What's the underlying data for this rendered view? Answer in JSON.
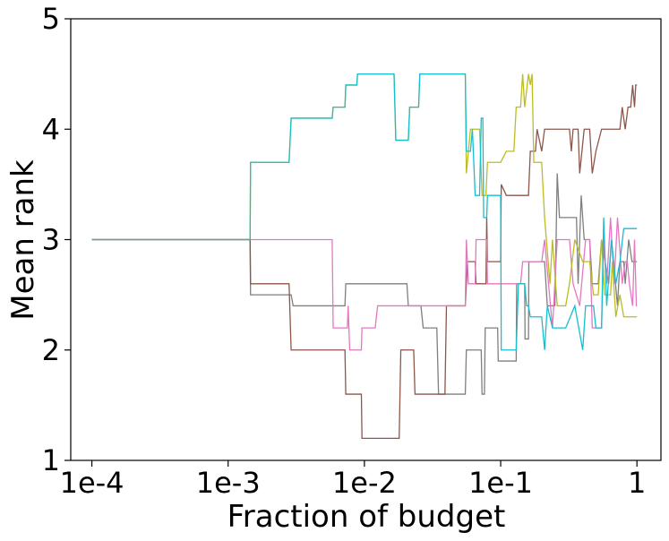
{
  "chart_data": {
    "type": "line",
    "title": "",
    "xlabel": "Fraction of budget",
    "ylabel": "Mean rank",
    "xscale": "log",
    "xlim": [
      7e-05,
      1.5
    ],
    "ylim": [
      1,
      5
    ],
    "x_ticks": [
      {
        "value": 0.0001,
        "label": "1e-4"
      },
      {
        "value": 0.001,
        "label": "1e-3"
      },
      {
        "value": 0.01,
        "label": "1e-2"
      },
      {
        "value": 0.1,
        "label": "1e-1"
      },
      {
        "value": 1,
        "label": "1"
      }
    ],
    "y_ticks": [
      {
        "value": 1,
        "label": "1"
      },
      {
        "value": 2,
        "label": "2"
      },
      {
        "value": 3,
        "label": "3"
      },
      {
        "value": 4,
        "label": "4"
      },
      {
        "value": 5,
        "label": "5"
      }
    ],
    "grid": false,
    "legend": "none",
    "series": [
      {
        "name": "gray",
        "color": "#7f7f7f",
        "points": [
          [
            0.0001,
            3.0
          ],
          [
            0.00145,
            3.0
          ],
          [
            0.00146,
            2.5
          ],
          [
            0.0029,
            2.5
          ],
          [
            0.003,
            2.4
          ],
          [
            0.0072,
            2.4
          ],
          [
            0.0073,
            2.6
          ],
          [
            0.0205,
            2.6
          ],
          [
            0.021,
            2.4
          ],
          [
            0.026,
            2.4
          ],
          [
            0.027,
            2.2
          ],
          [
            0.034,
            2.2
          ],
          [
            0.035,
            1.6
          ],
          [
            0.055,
            1.6
          ],
          [
            0.056,
            2.0
          ],
          [
            0.072,
            2.0
          ],
          [
            0.073,
            1.6
          ],
          [
            0.076,
            1.6
          ],
          [
            0.077,
            2.2
          ],
          [
            0.095,
            2.2
          ],
          [
            0.096,
            1.9
          ],
          [
            0.13,
            1.9
          ],
          [
            0.131,
            2.6
          ],
          [
            0.15,
            2.6
          ],
          [
            0.151,
            2.1
          ],
          [
            0.16,
            2.1
          ],
          [
            0.161,
            2.8
          ],
          [
            0.21,
            2.8
          ],
          [
            0.22,
            2.4
          ],
          [
            0.25,
            2.4
          ],
          [
            0.26,
            3.6
          ],
          [
            0.27,
            3.2
          ],
          [
            0.36,
            3.2
          ],
          [
            0.37,
            2.6
          ],
          [
            0.39,
            3.4
          ],
          [
            0.41,
            3.0
          ],
          [
            0.45,
            3.0
          ],
          [
            0.47,
            2.6
          ],
          [
            0.52,
            2.6
          ],
          [
            0.55,
            3.0
          ],
          [
            0.62,
            2.6
          ],
          [
            0.65,
            3.0
          ],
          [
            0.72,
            2.4
          ],
          [
            0.75,
            2.8
          ],
          [
            0.8,
            2.8
          ],
          [
            0.82,
            2.6
          ],
          [
            0.87,
            3.0
          ],
          [
            0.92,
            2.8
          ],
          [
            1.0,
            2.8
          ]
        ]
      },
      {
        "name": "brown",
        "color": "#8c564b",
        "points": [
          [
            0.0001,
            3.0
          ],
          [
            0.00145,
            3.0
          ],
          [
            0.00146,
            2.6
          ],
          [
            0.0028,
            2.6
          ],
          [
            0.0029,
            2.0
          ],
          [
            0.0072,
            2.0
          ],
          [
            0.0073,
            1.6
          ],
          [
            0.0095,
            1.6
          ],
          [
            0.0096,
            1.2
          ],
          [
            0.018,
            1.2
          ],
          [
            0.0185,
            2.0
          ],
          [
            0.023,
            2.0
          ],
          [
            0.0235,
            1.6
          ],
          [
            0.039,
            1.6
          ],
          [
            0.04,
            2.4
          ],
          [
            0.055,
            2.4
          ],
          [
            0.056,
            2.6
          ],
          [
            0.057,
            2.8
          ],
          [
            0.065,
            2.8
          ],
          [
            0.066,
            2.6
          ],
          [
            0.078,
            2.6
          ],
          [
            0.079,
            3.2
          ],
          [
            0.08,
            2.8
          ],
          [
            0.1,
            2.8
          ],
          [
            0.101,
            3.5
          ],
          [
            0.11,
            3.4
          ],
          [
            0.16,
            3.4
          ],
          [
            0.165,
            3.8
          ],
          [
            0.18,
            3.8
          ],
          [
            0.185,
            4.0
          ],
          [
            0.2,
            3.8
          ],
          [
            0.21,
            4.0
          ],
          [
            0.32,
            4.0
          ],
          [
            0.33,
            3.8
          ],
          [
            0.34,
            4.0
          ],
          [
            0.37,
            4.0
          ],
          [
            0.38,
            3.6
          ],
          [
            0.41,
            4.0
          ],
          [
            0.45,
            4.0
          ],
          [
            0.47,
            3.6
          ],
          [
            0.5,
            3.8
          ],
          [
            0.55,
            4.0
          ],
          [
            0.75,
            4.0
          ],
          [
            0.78,
            4.2
          ],
          [
            0.82,
            4.0
          ],
          [
            0.86,
            4.2
          ],
          [
            0.9,
            4.2
          ],
          [
            0.93,
            4.4
          ],
          [
            0.96,
            4.2
          ],
          [
            0.98,
            4.4
          ],
          [
            1.0,
            4.4
          ]
        ]
      },
      {
        "name": "pink",
        "color": "#e377c2",
        "points": [
          [
            0.0001,
            3.0
          ],
          [
            0.00145,
            3.0
          ],
          [
            0.0058,
            3.0
          ],
          [
            0.0059,
            2.2
          ],
          [
            0.0075,
            2.2
          ],
          [
            0.0076,
            2.4
          ],
          [
            0.0078,
            2.0
          ],
          [
            0.0095,
            2.0
          ],
          [
            0.0096,
            2.2
          ],
          [
            0.012,
            2.2
          ],
          [
            0.0125,
            2.4
          ],
          [
            0.055,
            2.4
          ],
          [
            0.056,
            3.0
          ],
          [
            0.058,
            2.6
          ],
          [
            0.065,
            2.6
          ],
          [
            0.066,
            3.0
          ],
          [
            0.079,
            3.0
          ],
          [
            0.08,
            2.6
          ],
          [
            0.14,
            2.6
          ],
          [
            0.145,
            2.8
          ],
          [
            0.2,
            2.8
          ],
          [
            0.21,
            3.0
          ],
          [
            0.24,
            2.2
          ],
          [
            0.26,
            3.0
          ],
          [
            0.32,
            3.0
          ],
          [
            0.34,
            2.6
          ],
          [
            0.38,
            2.4
          ],
          [
            0.42,
            3.0
          ],
          [
            0.45,
            3.0
          ],
          [
            0.47,
            2.2
          ],
          [
            0.55,
            2.2
          ],
          [
            0.57,
            3.0
          ],
          [
            0.6,
            2.6
          ],
          [
            0.64,
            3.2
          ],
          [
            0.68,
            2.6
          ],
          [
            0.72,
            3.2
          ],
          [
            0.78,
            2.6
          ],
          [
            0.82,
            2.8
          ],
          [
            0.85,
            2.8
          ],
          [
            0.88,
            2.6
          ],
          [
            0.93,
            2.4
          ],
          [
            0.96,
            3.0
          ],
          [
            0.99,
            2.4
          ],
          [
            1.0,
            2.4
          ]
        ]
      },
      {
        "name": "olive",
        "color": "#bcbd22",
        "points": [
          [
            0.0001,
            3.0
          ],
          [
            0.00145,
            3.0
          ],
          [
            0.00146,
            3.7
          ],
          [
            0.0028,
            3.7
          ],
          [
            0.0029,
            4.1
          ],
          [
            0.0058,
            4.1
          ],
          [
            0.0059,
            4.2
          ],
          [
            0.0072,
            4.2
          ],
          [
            0.0073,
            4.4
          ],
          [
            0.0088,
            4.4
          ],
          [
            0.0089,
            4.5
          ],
          [
            0.0165,
            4.5
          ],
          [
            0.017,
            3.9
          ],
          [
            0.021,
            3.9
          ],
          [
            0.0215,
            4.2
          ],
          [
            0.025,
            4.2
          ],
          [
            0.0255,
            4.5
          ],
          [
            0.055,
            4.5
          ],
          [
            0.056,
            3.6
          ],
          [
            0.06,
            4.0
          ],
          [
            0.07,
            4.0
          ],
          [
            0.073,
            3.4
          ],
          [
            0.078,
            3.4
          ],
          [
            0.08,
            3.7
          ],
          [
            0.1,
            3.7
          ],
          [
            0.11,
            3.8
          ],
          [
            0.125,
            3.8
          ],
          [
            0.13,
            4.2
          ],
          [
            0.14,
            4.2
          ],
          [
            0.145,
            4.5
          ],
          [
            0.15,
            4.2
          ],
          [
            0.16,
            4.5
          ],
          [
            0.165,
            4.4
          ],
          [
            0.17,
            4.5
          ],
          [
            0.175,
            3.7
          ],
          [
            0.2,
            3.7
          ],
          [
            0.21,
            3.2
          ],
          [
            0.23,
            2.6
          ],
          [
            0.24,
            3.0
          ],
          [
            0.26,
            2.4
          ],
          [
            0.3,
            2.4
          ],
          [
            0.32,
            2.6
          ],
          [
            0.35,
            3.0
          ],
          [
            0.4,
            2.8
          ],
          [
            0.45,
            2.8
          ],
          [
            0.48,
            2.5
          ],
          [
            0.52,
            2.5
          ],
          [
            0.55,
            3.0
          ],
          [
            0.58,
            2.5
          ],
          [
            0.64,
            2.5
          ],
          [
            0.66,
            2.8
          ],
          [
            0.7,
            2.3
          ],
          [
            0.75,
            2.5
          ],
          [
            0.8,
            2.3
          ],
          [
            0.85,
            2.3
          ],
          [
            1.0,
            2.3
          ]
        ]
      },
      {
        "name": "cyan",
        "color": "#17becf",
        "points": [
          [
            0.0001,
            3.0
          ],
          [
            0.00145,
            3.0
          ],
          [
            0.00146,
            3.7
          ],
          [
            0.0028,
            3.7
          ],
          [
            0.0029,
            4.1
          ],
          [
            0.0058,
            4.1
          ],
          [
            0.0059,
            4.2
          ],
          [
            0.0072,
            4.2
          ],
          [
            0.0073,
            4.4
          ],
          [
            0.0088,
            4.4
          ],
          [
            0.0089,
            4.5
          ],
          [
            0.0165,
            4.5
          ],
          [
            0.017,
            3.9
          ],
          [
            0.021,
            3.9
          ],
          [
            0.0215,
            4.2
          ],
          [
            0.025,
            4.2
          ],
          [
            0.0255,
            4.5
          ],
          [
            0.055,
            4.5
          ],
          [
            0.056,
            3.8
          ],
          [
            0.06,
            3.8
          ],
          [
            0.062,
            4.0
          ],
          [
            0.065,
            3.4
          ],
          [
            0.07,
            3.4
          ],
          [
            0.072,
            4.1
          ],
          [
            0.074,
            4.1
          ],
          [
            0.075,
            3.2
          ],
          [
            0.079,
            3.2
          ],
          [
            0.08,
            3.4
          ],
          [
            0.1,
            3.4
          ],
          [
            0.101,
            2.0
          ],
          [
            0.13,
            2.0
          ],
          [
            0.135,
            2.6
          ],
          [
            0.15,
            2.6
          ],
          [
            0.155,
            2.4
          ],
          [
            0.16,
            2.4
          ],
          [
            0.165,
            2.3
          ],
          [
            0.2,
            2.3
          ],
          [
            0.21,
            2.0
          ],
          [
            0.22,
            2.4
          ],
          [
            0.24,
            2.2
          ],
          [
            0.3,
            2.2
          ],
          [
            0.35,
            2.4
          ],
          [
            0.4,
            2.0
          ],
          [
            0.42,
            2.4
          ],
          [
            0.48,
            2.4
          ],
          [
            0.5,
            2.2
          ],
          [
            0.55,
            2.2
          ],
          [
            0.57,
            3.2
          ],
          [
            0.6,
            2.4
          ],
          [
            0.65,
            3.0
          ],
          [
            0.7,
            2.6
          ],
          [
            0.75,
            2.8
          ],
          [
            0.8,
            3.1
          ],
          [
            1.0,
            3.1
          ]
        ]
      }
    ]
  }
}
